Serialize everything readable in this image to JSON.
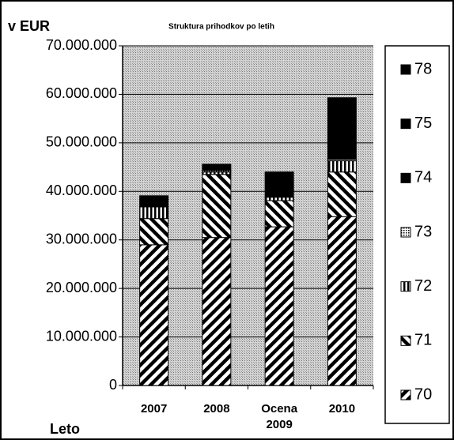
{
  "chart_data": {
    "type": "stacked-bar",
    "title": "Struktura prihodkov po letih",
    "y_axis_label": "v EUR",
    "x_axis_label": "Leto",
    "categories": [
      "2007",
      "2008",
      "Ocena 2009",
      "2010"
    ],
    "series": [
      {
        "name": "70",
        "color": "#000000",
        "pattern": "hatch",
        "values": [
          29000000,
          30500000,
          32700000,
          34800000
        ]
      },
      {
        "name": "71",
        "color": "#000000",
        "pattern": "hatch-reverse",
        "values": [
          5400000,
          13000000,
          5400000,
          9200000
        ]
      },
      {
        "name": "72",
        "color": "#000000",
        "pattern": "vertical",
        "values": [
          2400000,
          500000,
          700000,
          2300000
        ]
      },
      {
        "name": "73",
        "color": "#000000",
        "pattern": "dots",
        "values": [
          0,
          300000,
          0,
          300000
        ]
      },
      {
        "name": "74",
        "color": "#000000",
        "pattern": "solid",
        "values": [
          2300000,
          1300000,
          5200000,
          3400000
        ]
      },
      {
        "name": "75",
        "color": "#000000",
        "pattern": "solid",
        "values": [
          0,
          0,
          0,
          9300000
        ]
      },
      {
        "name": "78",
        "color": "#000000",
        "pattern": "solid",
        "values": [
          0,
          0,
          0,
          0
        ]
      }
    ],
    "ylim": [
      0,
      70000000
    ],
    "yticks": [
      0,
      {
        "value": 10000000,
        "label": "10.000.000"
      },
      {
        "value": 20000000,
        "label": "20.000.000"
      },
      {
        "value": 30000000,
        "label": "30.000.000"
      },
      {
        "value": 40000000,
        "label": "40.000.000"
      },
      {
        "value": 50000000,
        "label": "50.000.000"
      },
      {
        "value": 60000000,
        "label": "60.000.000"
      },
      {
        "value": 70000000,
        "label": "70.000.000"
      }
    ],
    "grid": true,
    "legend": "right"
  }
}
